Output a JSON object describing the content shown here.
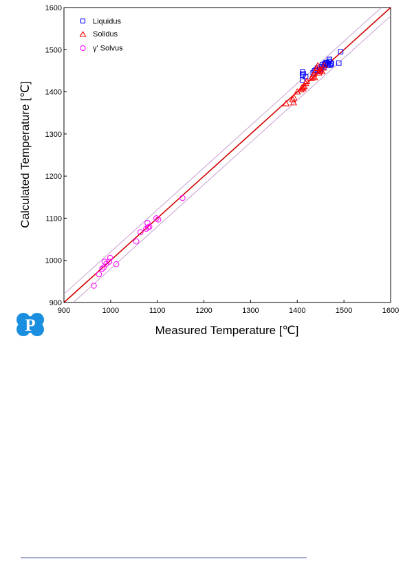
{
  "logo": {
    "letter": "P",
    "color": "#1a8fe0"
  },
  "colors": {
    "liquidus": "#0000ff",
    "solidus": "#ff0000",
    "gamma_solvus": "#ff00ff",
    "diagonal": "#d40000",
    "band": "#c8a0d0"
  },
  "chart_data": {
    "type": "scatter",
    "xlabel": "Measured Temperature [℃]",
    "ylabel": "Calculated Temperature [℃]",
    "xlim": [
      900,
      1600
    ],
    "ylim": [
      900,
      1600
    ],
    "xticks": [
      900,
      1000,
      1100,
      1200,
      1300,
      1400,
      1500,
      1600
    ],
    "yticks": [
      900,
      1000,
      1100,
      1200,
      1300,
      1400,
      1500,
      1600
    ],
    "grid": false,
    "legend_position": "top-left",
    "reference_lines": [
      {
        "kind": "y=x",
        "offset": 0
      },
      {
        "kind": "band",
        "offset": 20
      },
      {
        "kind": "band",
        "offset": -20
      }
    ],
    "series": [
      {
        "name": "Liquidus",
        "marker": "square",
        "points": [
          [
            1411,
            1447
          ],
          [
            1411,
            1440
          ],
          [
            1413,
            1443
          ],
          [
            1411,
            1428
          ],
          [
            1418,
            1436
          ],
          [
            1434,
            1445
          ],
          [
            1437,
            1450
          ],
          [
            1440,
            1452
          ],
          [
            1443,
            1456
          ],
          [
            1448,
            1453
          ],
          [
            1452,
            1460
          ],
          [
            1455,
            1465
          ],
          [
            1458,
            1463
          ],
          [
            1460,
            1467
          ],
          [
            1462,
            1470
          ],
          [
            1464,
            1468
          ],
          [
            1466,
            1465
          ],
          [
            1468,
            1472
          ],
          [
            1469,
            1477
          ],
          [
            1470,
            1463
          ],
          [
            1472,
            1468
          ],
          [
            1473,
            1466
          ],
          [
            1489,
            1468
          ],
          [
            1493,
            1495
          ],
          [
            1449,
            1448
          ],
          [
            1457,
            1458
          ]
        ]
      },
      {
        "name": "Solidus",
        "marker": "triangle",
        "points": [
          [
            1376,
            1372
          ],
          [
            1390,
            1382
          ],
          [
            1392,
            1374
          ],
          [
            1393,
            1386
          ],
          [
            1400,
            1400
          ],
          [
            1408,
            1405
          ],
          [
            1410,
            1410
          ],
          [
            1412,
            1408
          ],
          [
            1413,
            1412
          ],
          [
            1415,
            1413
          ],
          [
            1418,
            1420
          ],
          [
            1420,
            1425
          ],
          [
            1430,
            1432
          ],
          [
            1433,
            1436
          ],
          [
            1435,
            1442
          ],
          [
            1437,
            1434
          ],
          [
            1440,
            1450
          ],
          [
            1442,
            1456
          ],
          [
            1444,
            1462
          ],
          [
            1446,
            1445
          ],
          [
            1448,
            1450
          ],
          [
            1450,
            1452
          ],
          [
            1453,
            1448
          ],
          [
            1455,
            1457
          ],
          [
            1458,
            1463
          ]
        ]
      },
      {
        "name": "γ' Solvus",
        "marker": "circle",
        "points": [
          [
            964,
            940
          ],
          [
            975,
            967
          ],
          [
            982,
            980
          ],
          [
            985,
            983
          ],
          [
            987,
            997
          ],
          [
            991,
            992
          ],
          [
            997,
            997
          ],
          [
            999,
            1006
          ],
          [
            1012,
            991
          ],
          [
            1055,
            1045
          ],
          [
            1064,
            1067
          ],
          [
            1076,
            1075
          ],
          [
            1079,
            1089
          ],
          [
            1080,
            1078
          ],
          [
            1083,
            1080
          ],
          [
            1098,
            1100
          ],
          [
            1102,
            1097
          ],
          [
            1154,
            1148
          ]
        ]
      }
    ]
  }
}
